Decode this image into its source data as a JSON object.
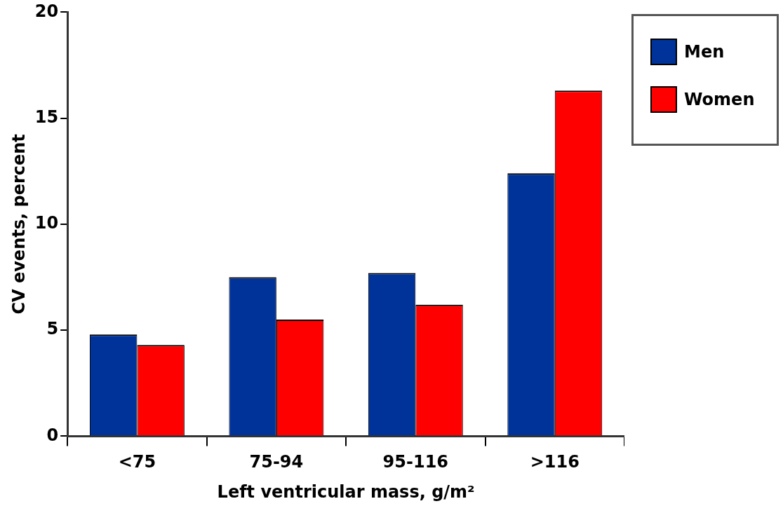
{
  "chart_data": {
    "type": "bar",
    "xlabel": "Left ventricular mass, g/m²",
    "ylabel": "CV events, percent",
    "categories": [
      "<75",
      "75-94",
      "95-116",
      ">116"
    ],
    "series": [
      {
        "name": "Men",
        "color": "#003399",
        "values": [
          4.8,
          7.5,
          7.7,
          12.4
        ]
      },
      {
        "name": "Women",
        "color": "#ff0000",
        "values": [
          4.3,
          5.5,
          6.2,
          16.3
        ]
      }
    ],
    "ylim": [
      0,
      20
    ],
    "yticks": [
      0,
      5,
      10,
      15,
      20
    ],
    "grid": false,
    "legend": "top right"
  }
}
